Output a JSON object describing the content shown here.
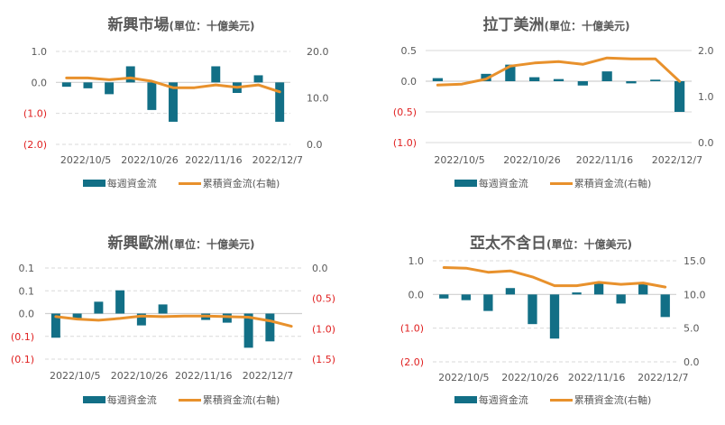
{
  "colors": {
    "bar": "#126F86",
    "line": "#E8912C",
    "negative_label": "#E02020",
    "text": "#595959",
    "grid": "#D9D9D9"
  },
  "legend": {
    "bar_label": "每週資金流",
    "line_label": "累積資金流(右軸)"
  },
  "chart_data": [
    {
      "type": "bar+line",
      "title": "新興市場",
      "unit": "(單位：十億美元)",
      "x_tick_labels": [
        "2022/10/5",
        "2022/10/26",
        "2022/11/16",
        "2022/12/7"
      ],
      "x": [
        "2022/10/5",
        "2022/10/12",
        "2022/10/19",
        "2022/10/26",
        "2022/11/2",
        "2022/11/9",
        "2022/11/16",
        "2022/11/23",
        "2022/11/30",
        "2022/12/7",
        "2022/12/14"
      ],
      "left_axis": {
        "ylim": [
          -2.0,
          1.0
        ],
        "ticks": [
          1.0,
          0.0,
          -1.0,
          -2.0
        ],
        "tick_labels": [
          "1.0",
          "0.0",
          "(1.0)",
          "(2.0)"
        ],
        "grid": "dashed"
      },
      "right_axis": {
        "ylim": [
          0,
          20
        ],
        "ticks": [
          20,
          10,
          0
        ],
        "tick_labels": [
          "20.0",
          "10.0",
          "0.0"
        ]
      },
      "series": [
        {
          "name": "每週資金流",
          "type": "bar",
          "axis": "left",
          "values": [
            -0.14,
            -0.19,
            -0.38,
            0.52,
            -0.89,
            -1.27,
            0.0,
            0.52,
            -0.34,
            0.23,
            -1.27
          ]
        },
        {
          "name": "累積資金流(右軸)",
          "type": "line",
          "axis": "right",
          "values": [
            14.3,
            14.3,
            13.9,
            14.3,
            13.6,
            12.2,
            12.2,
            12.8,
            12.3,
            12.8,
            11.3
          ]
        }
      ],
      "legend_position": "bottom"
    },
    {
      "type": "bar+line",
      "title": "拉丁美洲",
      "unit": "(單位：十億美元)",
      "x_tick_labels": [
        "2022/10/5",
        "2022/10/26",
        "2022/11/16",
        "2022/12/7"
      ],
      "x": [
        "2022/10/5",
        "2022/10/12",
        "2022/10/19",
        "2022/10/26",
        "2022/11/2",
        "2022/11/9",
        "2022/11/16",
        "2022/11/23",
        "2022/11/30",
        "2022/12/7",
        "2022/12/14"
      ],
      "left_axis": {
        "ylim": [
          -1.0,
          0.5
        ],
        "ticks": [
          0.5,
          0.0,
          -0.5,
          -1.0
        ],
        "tick_labels": [
          "0.5",
          "0.0",
          "(0.5)",
          "(1.0)"
        ],
        "grid": "solid"
      },
      "right_axis": {
        "ylim": [
          0,
          2
        ],
        "ticks": [
          2,
          1,
          0
        ],
        "tick_labels": [
          "2.0",
          "1.0",
          "0.0"
        ]
      },
      "series": [
        {
          "name": "每週資金流",
          "type": "bar",
          "axis": "left",
          "values": [
            0.05,
            0.0,
            0.12,
            0.27,
            0.065,
            0.035,
            -0.07,
            0.16,
            -0.035,
            0.025,
            -0.5
          ]
        },
        {
          "name": "累積資金流(右軸)",
          "type": "line",
          "axis": "right",
          "values": [
            1.25,
            1.27,
            1.38,
            1.66,
            1.73,
            1.76,
            1.7,
            1.84,
            1.82,
            1.82,
            1.33
          ]
        }
      ],
      "legend_position": "bottom"
    },
    {
      "type": "bar+line",
      "title": "新興歐洲",
      "unit": "(單位：十億美元)",
      "x_tick_labels": [
        "2022/10/5",
        "2022/10/26",
        "2022/11/16",
        "2022/12/7"
      ],
      "x": [
        "2022/10/5",
        "2022/10/12",
        "2022/10/19",
        "2022/10/26",
        "2022/11/2",
        "2022/11/9",
        "2022/11/16",
        "2022/11/23",
        "2022/11/30",
        "2022/12/7",
        "2022/12/14",
        "2022/12/21"
      ],
      "left_axis": {
        "ylim": [
          -0.1,
          0.1
        ],
        "ticks": [
          0.1,
          0.05,
          0.0,
          -0.05,
          -0.1
        ],
        "tick_labels": [
          "0.1",
          "0.1",
          "0.0",
          "(0.1)",
          "(0.1)"
        ],
        "grid": "dashed"
      },
      "right_axis": {
        "ylim": [
          -1.5,
          0
        ],
        "ticks": [
          0,
          -0.5,
          -1.0,
          -1.5
        ],
        "tick_labels": [
          "0.0",
          "(0.5)",
          "(1.0)",
          "(1.5)"
        ]
      },
      "series": [
        {
          "name": "每週資金流",
          "type": "bar",
          "axis": "left",
          "values": [
            -0.053,
            -0.011,
            0.026,
            0.051,
            -0.026,
            0.02,
            0.0,
            -0.014,
            -0.02,
            -0.075,
            -0.061,
            0.0
          ]
        },
        {
          "name": "累積資金流(右軸)",
          "type": "line",
          "axis": "right",
          "values": [
            -0.8,
            -0.84,
            -0.86,
            -0.83,
            -0.79,
            -0.8,
            -0.79,
            -0.79,
            -0.8,
            -0.81,
            -0.87,
            -0.96
          ]
        }
      ],
      "legend_position": "bottom"
    },
    {
      "type": "bar+line",
      "title": "亞太不含日",
      "unit": "(單位：十億美元)",
      "x_tick_labels": [
        "2022/10/5",
        "2022/10/26",
        "2022/11/16",
        "2022/12/7"
      ],
      "x": [
        "2022/10/5",
        "2022/10/12",
        "2022/10/19",
        "2022/10/26",
        "2022/11/2",
        "2022/11/9",
        "2022/11/16",
        "2022/11/23",
        "2022/11/30",
        "2022/12/7",
        "2022/12/14"
      ],
      "left_axis": {
        "ylim": [
          -2.0,
          1.0
        ],
        "ticks": [
          1.0,
          0.0,
          -1.0,
          -2.0
        ],
        "tick_labels": [
          "1.0",
          "0.0",
          "(1.0)",
          "(2.0)"
        ],
        "grid": "dashed"
      },
      "right_axis": {
        "ylim": [
          0,
          15
        ],
        "ticks": [
          15,
          10,
          5,
          0
        ],
        "tick_labels": [
          "15.0",
          "10.0",
          "5.0",
          "0.0"
        ]
      },
      "series": [
        {
          "name": "每週資金流",
          "type": "bar",
          "axis": "left",
          "values": [
            -0.12,
            -0.17,
            -0.49,
            0.19,
            -0.88,
            -1.31,
            0.06,
            0.37,
            -0.27,
            0.31,
            -0.67
          ]
        },
        {
          "name": "累積資金流(右軸)",
          "type": "line",
          "axis": "right",
          "values": [
            14.0,
            13.9,
            13.3,
            13.5,
            12.6,
            11.3,
            11.3,
            11.8,
            11.5,
            11.7,
            11.1
          ]
        }
      ],
      "legend_position": "bottom"
    }
  ]
}
